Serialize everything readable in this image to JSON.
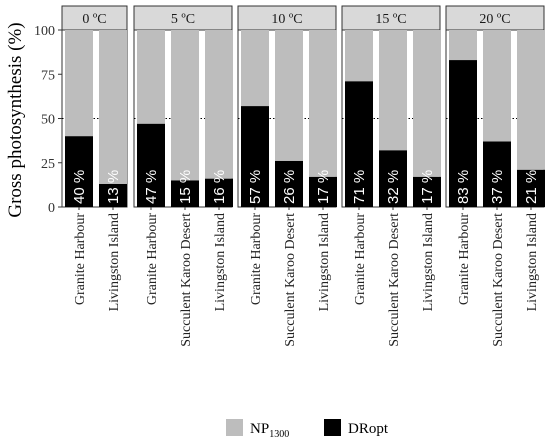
{
  "chart_data": {
    "type": "bar",
    "stacked": true,
    "ylabel": "Gross photosynthesis (%)",
    "ylim": [
      0,
      100
    ],
    "yticks": [
      0,
      25,
      50,
      75,
      100
    ],
    "reference_line": 50,
    "colors": {
      "NP1300": "#bdbdbd",
      "DRopt": "#000000",
      "strip": "#d9d9d9"
    },
    "legend": {
      "placement": "bottom",
      "entries": [
        {
          "key": "NP1300",
          "base": "NP",
          "sub": "1300"
        },
        {
          "key": "DRopt",
          "label": "DRopt"
        }
      ]
    },
    "panels": [
      {
        "title": "0 ºC",
        "categories": [
          "Granite Harbour",
          "Livingston Island"
        ],
        "dropt": [
          40,
          13
        ],
        "labels": [
          "40 %",
          "13 %"
        ]
      },
      {
        "title": "5 ºC",
        "categories": [
          "Granite Harbour",
          "Succulent Karoo Desert",
          "Livingston Island"
        ],
        "dropt": [
          47,
          15,
          16
        ],
        "labels": [
          "47 %",
          "15 %",
          "16 %"
        ]
      },
      {
        "title": "10 ºC",
        "categories": [
          "Granite Harbour",
          "Succulent Karoo Desert",
          "Livingston Island"
        ],
        "dropt": [
          57,
          26,
          17
        ],
        "labels": [
          "57 %",
          "26 %",
          "17 %"
        ]
      },
      {
        "title": "15 ºC",
        "categories": [
          "Granite Harbour",
          "Succulent Karoo Desert",
          "Livingston Island"
        ],
        "dropt": [
          71,
          32,
          17
        ],
        "labels": [
          "71 %",
          "32 %",
          "17 %"
        ]
      },
      {
        "title": "20 ºC",
        "categories": [
          "Granite Harbour",
          "Succulent Karoo Desert",
          "Livingston Island"
        ],
        "dropt": [
          83,
          37,
          21
        ],
        "labels": [
          "83 %",
          "37 %",
          "21 %"
        ]
      }
    ]
  }
}
